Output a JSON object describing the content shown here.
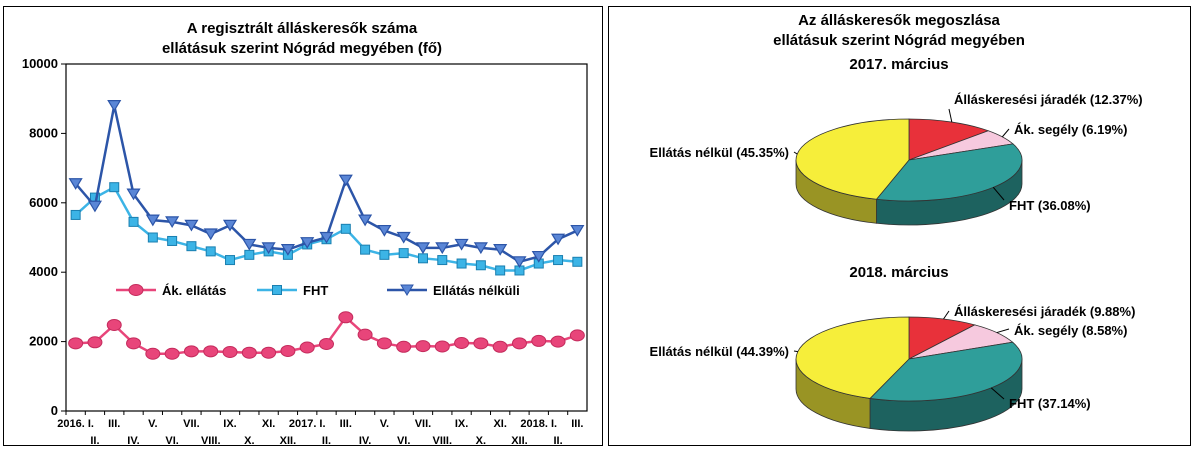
{
  "left_chart": {
    "title_line1": "A regisztrált álláskeresők száma",
    "title_line2": "ellátásuk szerint Nógrád megyében (fő)"
  },
  "right_chart": {
    "title_line1": "Az álláskeresők megoszlása",
    "title_line2": "ellátásuk szerint Nógrád megyében"
  },
  "chart_data": [
    {
      "type": "line",
      "title": "A regisztrált álláskeresők száma ellátásuk szerint Nógrád megyében (fő)",
      "xlabel": "",
      "ylabel": "",
      "ylim": [
        0,
        10000
      ],
      "yticks": [
        "0",
        "2000",
        "4000",
        "6000",
        "8000",
        "10000"
      ],
      "grid": false,
      "legend_position": "middle",
      "x": [
        "2016. I.",
        "II.",
        "III.",
        "IV.",
        "V.",
        "VI.",
        "VII.",
        "VIII.",
        "IX.",
        "X.",
        "XI.",
        "XII.",
        "2017. I.",
        "II.",
        "III.",
        "IV.",
        "V.",
        "VI.",
        "VII.",
        "VIII.",
        "IX.",
        "X.",
        "XI.",
        "XII.",
        "2018. I.",
        "II.",
        "III."
      ],
      "series": [
        {
          "name": "Ák. ellátás",
          "color": "#e8457a",
          "marker": "circle",
          "values": [
            1950,
            1980,
            2480,
            1950,
            1650,
            1650,
            1720,
            1720,
            1700,
            1680,
            1680,
            1730,
            1830,
            1930,
            2700,
            2200,
            1950,
            1850,
            1870,
            1860,
            1960,
            1950,
            1850,
            1950,
            2020,
            2000,
            2180
          ]
        },
        {
          "name": "FHT",
          "color": "#3cb4e6",
          "marker": "square",
          "values": [
            5650,
            6150,
            6450,
            5450,
            5000,
            4900,
            4750,
            4600,
            4350,
            4500,
            4600,
            4500,
            4800,
            4950,
            5250,
            4650,
            4500,
            4550,
            4400,
            4350,
            4250,
            4200,
            4050,
            4050,
            4250,
            4350,
            4300
          ]
        },
        {
          "name": "Ellátás nélküli",
          "color": "#2c55a8",
          "marker": "triangle-down",
          "values": [
            6550,
            5900,
            8800,
            6250,
            5500,
            5450,
            5350,
            5100,
            5350,
            4800,
            4700,
            4650,
            4850,
            5000,
            6650,
            5500,
            5200,
            5000,
            4700,
            4700,
            4800,
            4700,
            4650,
            4300,
            4450,
            4950,
            5200
          ]
        }
      ]
    },
    {
      "type": "pie",
      "title": "2017. március",
      "series": [
        {
          "name": "Álláskeresési járadék",
          "label": "Álláskeresési járadék (12.37%)",
          "value": 12.37,
          "color": "#e8313a"
        },
        {
          "name": "Ák. segély",
          "label": "Ák. segély (6.19%)",
          "value": 6.19,
          "color": "#f6c9de"
        },
        {
          "name": "FHT",
          "label": "FHT (36.08%)",
          "value": 36.08,
          "color": "#2f9e9a"
        },
        {
          "name": "Ellátás nélkül",
          "label": "Ellátás nélkül (45.35%)",
          "value": 45.35,
          "color": "#f6ee3a"
        }
      ]
    },
    {
      "type": "pie",
      "title": "2018. március",
      "series": [
        {
          "name": "Álláskeresési járadék",
          "label": "Álláskeresési járadék (9.88%)",
          "value": 9.88,
          "color": "#e8313a"
        },
        {
          "name": "Ák. segély",
          "label": "Ák. segély (8.58%)",
          "value": 8.58,
          "color": "#f6c9de"
        },
        {
          "name": "FHT",
          "label": "FHT (37.14%)",
          "value": 37.14,
          "color": "#2f9e9a"
        },
        {
          "name": "Ellátás nélkül",
          "label": "Ellátás nélkül (44.39%)",
          "value": 44.39,
          "color": "#f6ee3a"
        }
      ]
    }
  ]
}
